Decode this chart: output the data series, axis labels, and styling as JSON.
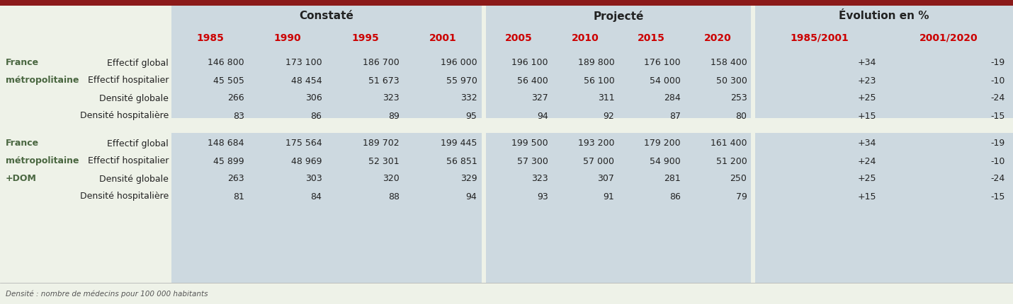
{
  "title_bar_color": "#8B1A1A",
  "bg_color": "#eef2e8",
  "blue_bg": "#cdd9e0",
  "header1_text": "Constaté",
  "header2_text": "Projecté",
  "header3_text": "Évolution en %",
  "year_color": "#cc0000",
  "years_constate": [
    "1985",
    "1990",
    "1995",
    "2001"
  ],
  "years_projete": [
    "2005",
    "2010",
    "2015",
    "2020"
  ],
  "years_evolution": [
    "1985/2001",
    "2001/2020"
  ],
  "row_labels_mid": [
    "Effectif global",
    "Effectif hospitalier",
    "Densité globale",
    "Densité hospitalière"
  ],
  "left_labels_g1": [
    "France",
    "métropolitaine",
    "",
    ""
  ],
  "left_labels_g2": [
    "France",
    "métropolitaine",
    "+DOM",
    ""
  ],
  "data_block1": [
    [
      "146 800",
      "173 100",
      "186 700",
      "196 000"
    ],
    [
      "45 505",
      "48 454",
      "51 673",
      "55 970"
    ],
    [
      "266",
      "306",
      "323",
      "332"
    ],
    [
      "83",
      "86",
      "89",
      "95"
    ]
  ],
  "data_block2": [
    [
      "196 100",
      "189 800",
      "176 100",
      "158 400"
    ],
    [
      "56 400",
      "56 100",
      "54 000",
      "50 300"
    ],
    [
      "327",
      "311",
      "284",
      "253"
    ],
    [
      "94",
      "92",
      "87",
      "80"
    ]
  ],
  "data_block3": [
    [
      "+34",
      "-19"
    ],
    [
      "+23",
      "-10"
    ],
    [
      "+25",
      "-24"
    ],
    [
      "+15",
      "-15"
    ]
  ],
  "data_block4": [
    [
      "148 684",
      "175 564",
      "189 702",
      "199 445"
    ],
    [
      "45 899",
      "48 969",
      "52 301",
      "56 851"
    ],
    [
      "263",
      "303",
      "320",
      "329"
    ],
    [
      "81",
      "84",
      "88",
      "94"
    ]
  ],
  "data_block5": [
    [
      "199 500",
      "193 200",
      "179 200",
      "161 400"
    ],
    [
      "57 300",
      "57 000",
      "54 900",
      "51 200"
    ],
    [
      "323",
      "307",
      "281",
      "250"
    ],
    [
      "93",
      "91",
      "86",
      "79"
    ]
  ],
  "data_block6": [
    [
      "+34",
      "-19"
    ],
    [
      "+24",
      "-10"
    ],
    [
      "+25",
      "-24"
    ],
    [
      "+15",
      "-15"
    ]
  ],
  "footnote": "Densité : nombre de médecins pour 100 000 habitants"
}
